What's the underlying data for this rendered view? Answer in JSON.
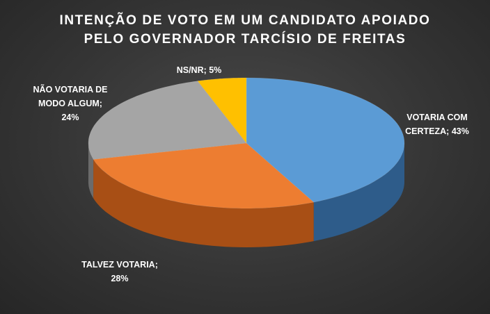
{
  "chart_data": {
    "type": "pie",
    "title_lines": [
      "INTENÇÃO DE VOTO EM UM CANDIDATO APOIADO",
      "PELO GOVERNADOR TARCÍSIO DE FREITAS"
    ],
    "slices": [
      {
        "name": "VOTARIA COM CERTEZA",
        "value": 43,
        "label_lines": [
          "VOTARIA COM",
          "CERTEZA; 43%"
        ],
        "color": "#5b9bd5",
        "side_color": "#2e5c8a"
      },
      {
        "name": "TALVEZ VOTARIA",
        "value": 28,
        "label_lines": [
          "TALVEZ VOTARIA;",
          "28%"
        ],
        "color": "#ed7d31",
        "side_color": "#a84f15"
      },
      {
        "name": "NÃO VOTARIA DE MODO ALGUM",
        "value": 24,
        "label_lines": [
          "NÃO VOTARIA DE",
          "MODO ALGUM;",
          "24%"
        ],
        "color": "#a5a5a5",
        "side_color": "#6b6b6b"
      },
      {
        "name": "NS/NR",
        "value": 5,
        "label_lines": [
          "NS/NR; 5%"
        ],
        "color": "#ffc000",
        "side_color": "#b38600"
      }
    ],
    "legend": "none",
    "style": "3d"
  }
}
